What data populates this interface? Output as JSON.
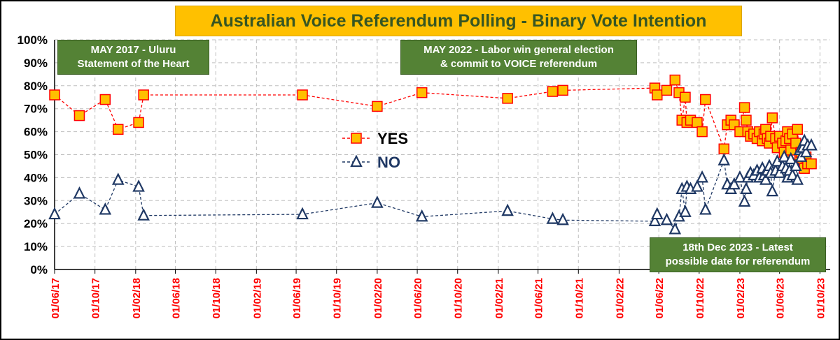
{
  "chart_data": {
    "type": "scatter",
    "title": "Australian Voice Referendum Polling - Binary Vote Intention",
    "xlabel": "",
    "ylabel": "",
    "ylim": [
      0,
      100
    ],
    "yticks": [
      "0%",
      "10%",
      "20%",
      "30%",
      "40%",
      "50%",
      "60%",
      "70%",
      "80%",
      "90%",
      "100%"
    ],
    "xlim": [
      "2017-06-01",
      "2023-11-01"
    ],
    "xticks": [
      "01/06/17",
      "01/10/17",
      "01/02/18",
      "01/06/18",
      "01/10/18",
      "01/02/19",
      "01/06/19",
      "01/10/19",
      "01/02/20",
      "01/06/20",
      "01/10/20",
      "01/02/21",
      "01/06/21",
      "01/10/21",
      "01/02/22",
      "01/06/22",
      "01/10/22",
      "01/02/23",
      "01/06/23",
      "01/10/23"
    ],
    "grid": true,
    "legend": "center-left",
    "series": [
      {
        "name": "YES",
        "color": "#ff0000",
        "marker_fill": "#ffc000",
        "marker_edge": "#ff0000",
        "marker": "square",
        "line": "dashed",
        "points": [
          [
            "2017-06-01",
            76
          ],
          [
            "2017-08-15",
            67
          ],
          [
            "2017-11-01",
            74
          ],
          [
            "2017-12-10",
            61
          ],
          [
            "2018-02-10",
            64
          ],
          [
            "2018-02-25",
            76
          ],
          [
            "2019-06-20",
            76
          ],
          [
            "2020-02-01",
            71
          ],
          [
            "2020-06-15",
            77
          ],
          [
            "2021-03-01",
            74.5
          ],
          [
            "2021-07-15",
            77.5
          ],
          [
            "2021-08-15",
            78
          ],
          [
            "2022-05-20",
            79
          ],
          [
            "2022-05-27",
            76
          ],
          [
            "2022-06-25",
            78
          ],
          [
            "2022-07-20",
            82.5
          ],
          [
            "2022-08-01",
            77
          ],
          [
            "2022-08-10",
            65
          ],
          [
            "2022-08-20",
            75
          ],
          [
            "2022-08-25",
            64
          ],
          [
            "2022-09-05",
            65
          ],
          [
            "2022-09-25",
            64
          ],
          [
            "2022-10-10",
            60
          ],
          [
            "2022-10-20",
            74
          ],
          [
            "2022-12-15",
            52.5
          ],
          [
            "2022-12-25",
            63
          ],
          [
            "2023-01-05",
            65
          ],
          [
            "2023-01-15",
            63
          ],
          [
            "2023-02-01",
            60
          ],
          [
            "2023-02-15",
            70.5
          ],
          [
            "2023-02-20",
            65
          ],
          [
            "2023-02-25",
            60
          ],
          [
            "2023-03-05",
            58
          ],
          [
            "2023-03-15",
            59
          ],
          [
            "2023-03-25",
            57
          ],
          [
            "2023-04-01",
            60
          ],
          [
            "2023-04-10",
            56
          ],
          [
            "2023-04-15",
            59
          ],
          [
            "2023-04-20",
            61
          ],
          [
            "2023-04-25",
            57
          ],
          [
            "2023-05-01",
            55
          ],
          [
            "2023-05-05",
            58
          ],
          [
            "2023-05-10",
            66
          ],
          [
            "2023-05-20",
            57
          ],
          [
            "2023-05-25",
            53
          ],
          [
            "2023-06-01",
            58
          ],
          [
            "2023-06-10",
            55
          ],
          [
            "2023-06-15",
            51
          ],
          [
            "2023-06-20",
            56
          ],
          [
            "2023-06-25",
            60
          ],
          [
            "2023-07-01",
            57
          ],
          [
            "2023-07-05",
            52
          ],
          [
            "2023-07-10",
            59
          ],
          [
            "2023-07-20",
            55
          ],
          [
            "2023-07-25",
            61
          ],
          [
            "2023-08-01",
            48
          ],
          [
            "2023-08-05",
            51
          ],
          [
            "2023-08-10",
            47
          ],
          [
            "2023-08-15",
            44
          ],
          [
            "2023-08-20",
            49
          ],
          [
            "2023-08-25",
            46
          ],
          [
            "2023-09-05",
            46
          ]
        ]
      },
      {
        "name": "NO",
        "color": "#1f3864",
        "marker_fill": "#ffffff",
        "marker_edge": "#1f3864",
        "marker": "triangle",
        "line": "dashed",
        "points": [
          [
            "2017-06-01",
            24
          ],
          [
            "2017-08-15",
            33
          ],
          [
            "2017-11-01",
            26
          ],
          [
            "2017-12-10",
            39
          ],
          [
            "2018-02-10",
            36
          ],
          [
            "2018-02-25",
            23.5
          ],
          [
            "2019-06-20",
            24
          ],
          [
            "2020-02-01",
            29
          ],
          [
            "2020-06-15",
            23
          ],
          [
            "2021-03-01",
            25.5
          ],
          [
            "2021-07-15",
            22
          ],
          [
            "2021-08-15",
            21.5
          ],
          [
            "2022-05-20",
            21
          ],
          [
            "2022-05-27",
            24
          ],
          [
            "2022-06-25",
            21.5
          ],
          [
            "2022-07-20",
            17.5
          ],
          [
            "2022-08-01",
            23
          ],
          [
            "2022-08-10",
            35
          ],
          [
            "2022-08-20",
            25
          ],
          [
            "2022-08-25",
            36
          ],
          [
            "2022-09-05",
            35
          ],
          [
            "2022-09-25",
            36
          ],
          [
            "2022-10-10",
            40
          ],
          [
            "2022-10-20",
            26
          ],
          [
            "2022-12-15",
            47.5
          ],
          [
            "2022-12-25",
            37
          ],
          [
            "2023-01-05",
            35
          ],
          [
            "2023-01-15",
            37
          ],
          [
            "2023-02-01",
            40
          ],
          [
            "2023-02-15",
            29.5
          ],
          [
            "2023-02-20",
            35
          ],
          [
            "2023-02-25",
            40
          ],
          [
            "2023-03-05",
            42
          ],
          [
            "2023-03-15",
            41
          ],
          [
            "2023-03-25",
            43
          ],
          [
            "2023-04-01",
            40
          ],
          [
            "2023-04-10",
            44
          ],
          [
            "2023-04-15",
            41
          ],
          [
            "2023-04-20",
            39
          ],
          [
            "2023-04-25",
            43
          ],
          [
            "2023-05-01",
            45
          ],
          [
            "2023-05-05",
            42
          ],
          [
            "2023-05-10",
            34
          ],
          [
            "2023-05-20",
            43
          ],
          [
            "2023-05-25",
            47
          ],
          [
            "2023-06-01",
            42
          ],
          [
            "2023-06-10",
            45
          ],
          [
            "2023-06-15",
            49
          ],
          [
            "2023-06-20",
            44
          ],
          [
            "2023-06-25",
            40
          ],
          [
            "2023-07-01",
            43
          ],
          [
            "2023-07-05",
            48
          ],
          [
            "2023-07-10",
            41
          ],
          [
            "2023-07-20",
            45
          ],
          [
            "2023-07-25",
            39
          ],
          [
            "2023-08-01",
            52
          ],
          [
            "2023-08-05",
            49
          ],
          [
            "2023-08-10",
            53
          ],
          [
            "2023-08-15",
            56
          ],
          [
            "2023-08-20",
            51
          ],
          [
            "2023-08-25",
            54
          ],
          [
            "2023-09-05",
            54
          ]
        ]
      }
    ],
    "annotations": [
      {
        "text_line1": "MAY 2017 - Uluru",
        "text_line2": "Statement of the Heart"
      },
      {
        "text_line1": "MAY 2022 - Labor win general election",
        "text_line2": "& commit to VOICE referendum"
      },
      {
        "text_line1": "18th Dec 2023 - Latest",
        "text_line2": "possible date for referendum"
      }
    ],
    "colors": {
      "title_bg": "#ffc000",
      "title_text": "#375623",
      "annotation_bg": "#548235",
      "grid": "#bfbfbf"
    }
  }
}
